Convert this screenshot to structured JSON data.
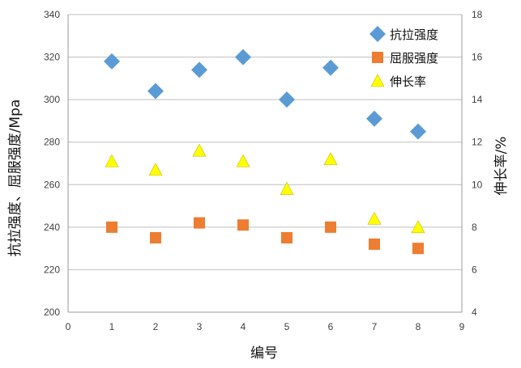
{
  "chart_data": {
    "type": "scatter",
    "x": [
      1,
      2,
      3,
      4,
      5,
      6,
      7,
      8
    ],
    "xlabel": "编号",
    "ylabel": "抗拉强度、屈服强度/Mpa",
    "y2label": "伸长率/%",
    "xlim": [
      0,
      9
    ],
    "xticks": [
      0,
      1,
      2,
      3,
      4,
      5,
      6,
      7,
      8,
      9
    ],
    "ylim": [
      200,
      340
    ],
    "yticks": [
      200,
      220,
      240,
      260,
      280,
      300,
      320,
      340
    ],
    "y2lim": [
      4,
      18
    ],
    "y2ticks": [
      4,
      6,
      8,
      10,
      12,
      14,
      16,
      18
    ],
    "grid": true,
    "legend_position": "top-right",
    "series": [
      {
        "name": "抗拉强度",
        "axis": "left",
        "marker": "diamond",
        "color": "#5B9BD5",
        "values": [
          318,
          304,
          314,
          320,
          300,
          315,
          291,
          285
        ]
      },
      {
        "name": "屈服强度",
        "axis": "left",
        "marker": "square",
        "color": "#ED7D31",
        "values": [
          240,
          235,
          242,
          241,
          235,
          240,
          232,
          230
        ]
      },
      {
        "name": "伸长率",
        "axis": "right",
        "marker": "triangle",
        "color": "#FFFF00",
        "values": [
          11.1,
          10.7,
          11.6,
          11.1,
          9.8,
          11.2,
          8.4,
          8.0
        ]
      }
    ]
  }
}
